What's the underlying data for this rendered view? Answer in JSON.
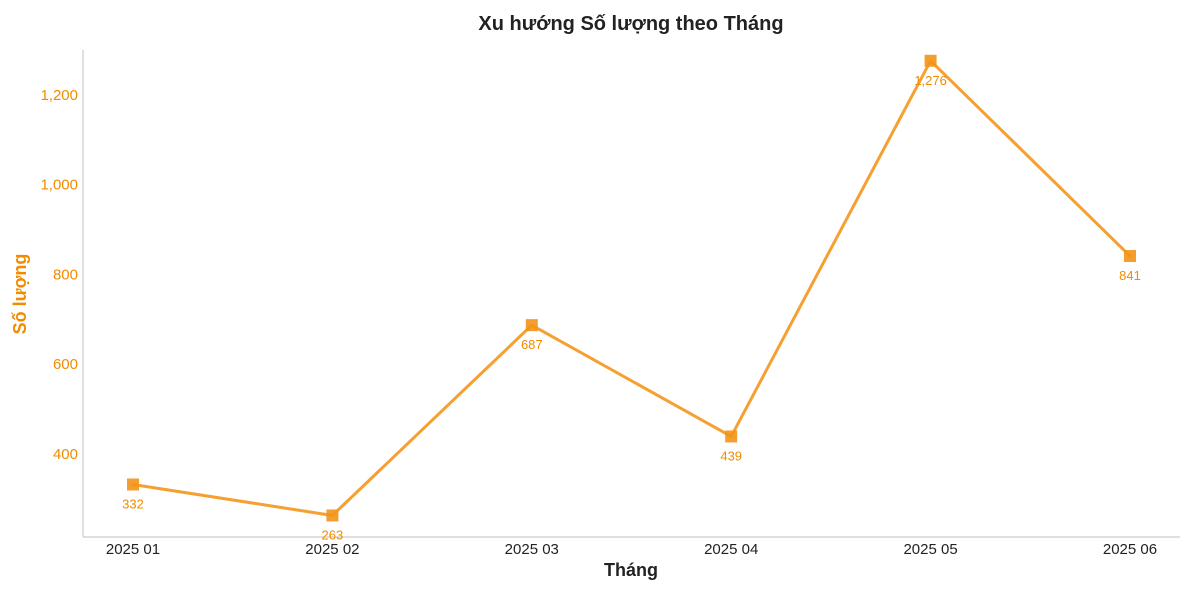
{
  "chart_data": {
    "type": "line",
    "title": "Xu hướng Số lượng theo Tháng",
    "xlabel": "Tháng",
    "ylabel": "Số lượng",
    "categories": [
      "2025 01",
      "2025 02",
      "2025 03",
      "2025 04",
      "2025 05",
      "2025 06"
    ],
    "values": [
      332,
      263,
      687,
      439,
      1276,
      841
    ],
    "data_labels": [
      "332",
      "263",
      "687",
      "439",
      "1,276",
      "841"
    ],
    "y_ticks": [
      400,
      600,
      800,
      1000,
      1200
    ],
    "y_tick_labels": [
      "400",
      "600",
      "800",
      "1,000",
      "1,200"
    ],
    "ylim": [
      215,
      1300
    ],
    "grid": false,
    "marker": "square",
    "colors": {
      "line": "#f5a030",
      "marker": "#f39419",
      "axis_text": "#f08c00",
      "x_tick_text": "#222222",
      "title_text": "#222222",
      "spine": "#cccccc"
    }
  }
}
